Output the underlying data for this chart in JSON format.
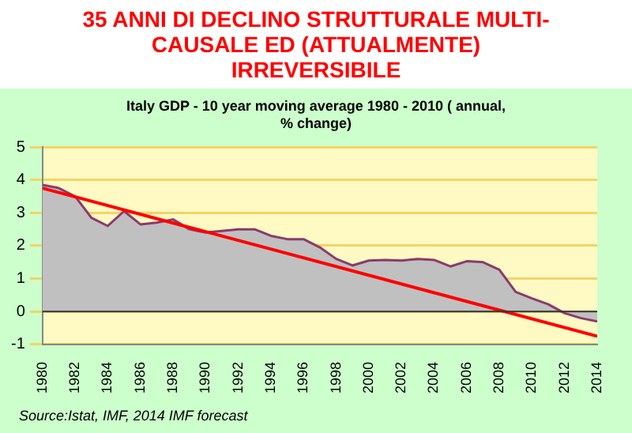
{
  "chart_data": {
    "type": "area",
    "title": "35 ANNI DI DECLINO STRUTTURALE MULTI-CAUSALE ED (ATTUALMENTE) IRREVERSIBILE",
    "subtitle": "Italy GDP  - 10 year moving average 1980 - 2010 ( annual, % change)",
    "annotations": [
      "Source:Istat, IMF, 2014 IMF forecast"
    ],
    "x": [
      1980,
      1981,
      1982,
      1983,
      1984,
      1985,
      1986,
      1987,
      1988,
      1989,
      1990,
      1991,
      1992,
      1993,
      1994,
      1995,
      1996,
      1997,
      1998,
      1999,
      2000,
      2001,
      2002,
      2003,
      2004,
      2005,
      2006,
      2007,
      2008,
      2009,
      2010,
      2011,
      2012,
      2013,
      2014
    ],
    "xlim": [
      1980,
      2014
    ],
    "xticks": [
      1980,
      1982,
      1984,
      1986,
      1988,
      1990,
      1992,
      1994,
      1996,
      1998,
      2000,
      2002,
      2004,
      2006,
      2008,
      2010,
      2012,
      2014
    ],
    "ylim": [
      -1,
      5
    ],
    "yticks": [
      -1,
      0,
      1,
      2,
      3,
      4,
      5
    ],
    "grid": "y",
    "legend": false,
    "marker": "none",
    "series": [
      {
        "type": "area",
        "color": "#8b3a6b",
        "values": [
          3.85,
          3.75,
          3.5,
          2.85,
          2.6,
          3.05,
          2.65,
          2.7,
          2.8,
          2.5,
          2.4,
          2.45,
          2.5,
          2.5,
          2.3,
          2.2,
          2.2,
          1.95,
          1.6,
          1.4,
          1.55,
          1.57,
          1.55,
          1.6,
          1.57,
          1.37,
          1.53,
          1.5,
          1.27,
          0.6,
          0.4,
          0.22,
          -0.05,
          -0.2,
          -0.3
        ]
      },
      {
        "type": "line",
        "color": "#ff0000",
        "x": [
          1980,
          2014
        ],
        "values": [
          3.75,
          -0.75
        ]
      }
    ]
  }
}
